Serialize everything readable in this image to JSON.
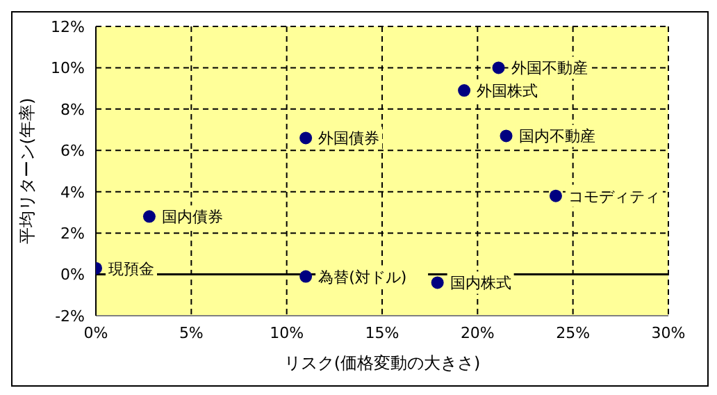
{
  "chart_data": {
    "type": "scatter",
    "xlabel": "リスク(価格変動の大きさ)",
    "ylabel": "平均リターン(年率)",
    "x": [
      0,
      2.8,
      11.0,
      11.0,
      17.9,
      19.3,
      21.1,
      21.5,
      24.1
    ],
    "series": [
      {
        "color": "#000080",
        "values": [
          0.3,
          2.8,
          6.6,
          -0.1,
          -0.4,
          8.9,
          10.0,
          6.7,
          3.8
        ]
      }
    ],
    "annotations": [
      {
        "text": "現預金",
        "x": 0,
        "y": 0.3
      },
      {
        "text": "国内債券",
        "x": 2.8,
        "y": 2.8
      },
      {
        "text": "外国債券",
        "x": 11.0,
        "y": 6.6
      },
      {
        "text": "為替(対ドル)",
        "x": 11.0,
        "y": -0.1
      },
      {
        "text": "国内株式",
        "x": 17.9,
        "y": -0.4
      },
      {
        "text": "外国株式",
        "x": 19.3,
        "y": 8.9
      },
      {
        "text": "外国不動産",
        "x": 21.1,
        "y": 10.0
      },
      {
        "text": "国内不動産",
        "x": 21.5,
        "y": 6.7
      },
      {
        "text": "コモディティ",
        "x": 24.1,
        "y": 3.8
      }
    ],
    "xlim": [
      0,
      30
    ],
    "xticks": [
      {
        "value": 0,
        "label": "0%"
      },
      {
        "value": 5,
        "label": "5%"
      },
      {
        "value": 10,
        "label": "10%"
      },
      {
        "value": 15,
        "label": "15%"
      },
      {
        "value": 20,
        "label": "20%"
      },
      {
        "value": 25,
        "label": "25%"
      },
      {
        "value": 30,
        "label": "30%"
      }
    ],
    "ylim": [
      -2,
      12
    ],
    "yticks": [
      {
        "value": -2,
        "label": "-2%"
      },
      {
        "value": 0,
        "label": "0%"
      },
      {
        "value": 2,
        "label": "2%"
      },
      {
        "value": 4,
        "label": "4%"
      },
      {
        "value": 6,
        "label": "6%"
      },
      {
        "value": 8,
        "label": "8%"
      },
      {
        "value": 10,
        "label": "10%"
      },
      {
        "value": 12,
        "label": "12%"
      }
    ],
    "ref_lines": [
      {
        "axis": "y",
        "value": 0,
        "color": "#000000"
      }
    ],
    "grid": true,
    "marker": "circle",
    "legend": false
  }
}
